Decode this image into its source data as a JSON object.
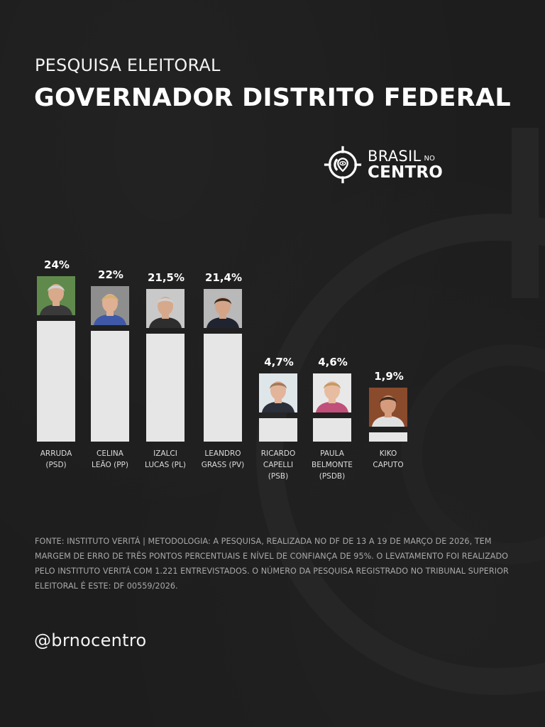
{
  "header": {
    "subtitle": "PESQUISA ELEITORAL",
    "title": "GOVERNADOR DISTRITO FEDERAL"
  },
  "logo": {
    "icon": "target-crosshair-icon",
    "line1": "BRASIL",
    "line1_small": "NO",
    "line2": "CENTRO"
  },
  "candidates": [
    {
      "name_line1": "ARRUDA",
      "name_line2": "(PSD)",
      "name_line3": "",
      "pct_label": "24%",
      "photo_bg": "#5f8a4c",
      "skin": "#d9a98c",
      "hair": "#cfcfcf",
      "shirt": "#3a3a3a"
    },
    {
      "name_line1": "CELINA",
      "name_line2": "LEÃO (PP)",
      "name_line3": "",
      "pct_label": "22%",
      "photo_bg": "#8e8e8e",
      "skin": "#e0b094",
      "hair": "#d3b16e",
      "shirt": "#3f59a8"
    },
    {
      "name_line1": "IZALCI",
      "name_line2": "LUCAS (PL)",
      "name_line3": "",
      "pct_label": "21,5%",
      "photo_bg": "#c9c9c9",
      "skin": "#d6a98c",
      "hair": "#d0d0d0",
      "shirt": "#2e2e2e"
    },
    {
      "name_line1": "LEANDRO",
      "name_line2": "GRASS (PV)",
      "name_line3": "",
      "pct_label": "21,4%",
      "photo_bg": "#b9b9b9",
      "skin": "#d4a488",
      "hair": "#3a2a20",
      "shirt": "#1f2430"
    },
    {
      "name_line1": "RICARDO",
      "name_line2": "CAPELLI",
      "name_line3": "(PSB)",
      "pct_label": "4,7%",
      "photo_bg": "#dfe6ea",
      "skin": "#e2b49a",
      "hair": "#a07a5a",
      "shirt": "#2b2f3a"
    },
    {
      "name_line1": "PAULA",
      "name_line2": "BELMONTE",
      "name_line3": "(PSDB)",
      "pct_label": "4,6%",
      "photo_bg": "#e8e8e8",
      "skin": "#e8bca0",
      "hair": "#c39a62",
      "shirt": "#c0507a"
    },
    {
      "name_line1": "KIKO",
      "name_line2": "CAPUTO",
      "name_line3": "",
      "pct_label": "1,9%",
      "photo_bg": "#8a4a2c",
      "skin": "#d49b7c",
      "hair": "#3c2a1e",
      "shirt": "#e0e0e0"
    }
  ],
  "chart_data": {
    "type": "bar",
    "title": "GOVERNADOR DISTRITO FEDERAL",
    "subtitle": "PESQUISA ELEITORAL",
    "categories": [
      "ARRUDA (PSD)",
      "CELINA LEÃO (PP)",
      "IZALCI LUCAS (PL)",
      "LEANDRO GRASS (PV)",
      "RICARDO CAPELLI (PSB)",
      "PAULA BELMONTE (PSDB)",
      "KIKO CAPUTO"
    ],
    "values": [
      24,
      22,
      21.5,
      21.4,
      4.7,
      4.6,
      1.9
    ],
    "value_labels": [
      "24%",
      "22%",
      "21,5%",
      "21,4%",
      "4,7%",
      "4,6%",
      "1,9%"
    ],
    "xlabel": "",
    "ylabel": "",
    "ylim": [
      0,
      24
    ],
    "grid": false,
    "legend": "none",
    "bar_color": "#e6e6e6",
    "background": "#1d1d1d"
  },
  "footnote": "FONTE: INSTITUTO VERITÁ | METODOLOGIA: A PESQUISA, REALIZADA NO DF DE 13 A 19 DE MARÇO DE 2026, TEM MARGEM DE ERRO DE TRÊS PONTOS PERCENTUAIS E NÍVEL DE CONFIANÇA DE 95%. O LEVATAMENTO FOI REALIZADO PELO INSTITUTO VERITÁ COM 1.221 ENTREVISTADOS. O NÚMERO DA PESQUISA REGISTRADO NO TRIBUNAL SUPERIOR ELEITORAL É ESTE: DF 00559/2026.",
  "handle": "@brnocentro"
}
